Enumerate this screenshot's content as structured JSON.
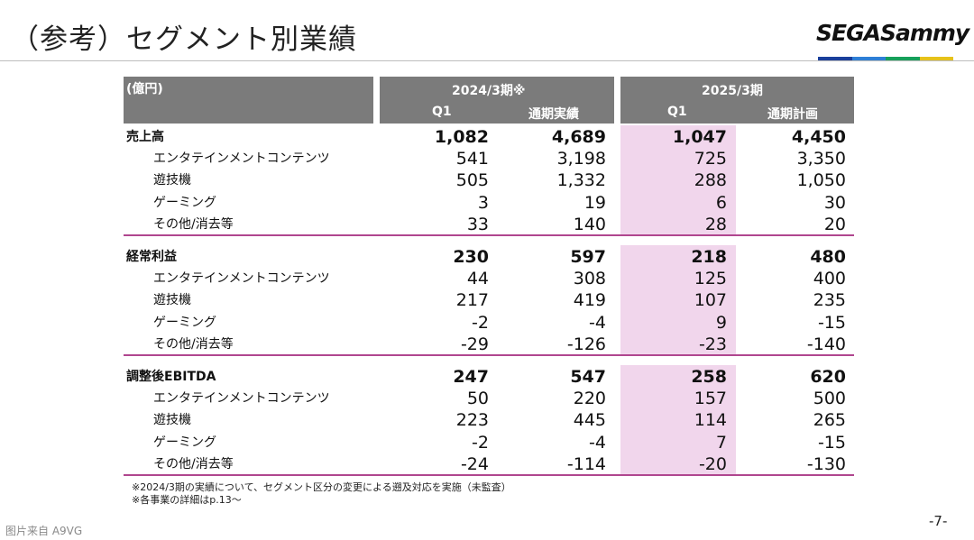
{
  "title": "（参考）セグメント別業績",
  "logo": {
    "text": "SEGASammy",
    "bar_colors": [
      "#1a3f9b",
      "#2e7fd6",
      "#16a05a",
      "#e6c21a"
    ]
  },
  "header": {
    "unit": "(億円)",
    "period1": "2024/3期※",
    "period2": "2025/3期",
    "cols": [
      "Q1",
      "通期実績",
      "Q1",
      "通期計画"
    ]
  },
  "sections": [
    {
      "rows": [
        {
          "label": "売上高",
          "main": true,
          "values": [
            "1,082",
            "4,689",
            "1,047",
            "4,450"
          ]
        },
        {
          "label": "エンタテインメントコンテンツ",
          "values": [
            "541",
            "3,198",
            "725",
            "3,350"
          ]
        },
        {
          "label": "遊技機",
          "values": [
            "505",
            "1,332",
            "288",
            "1,050"
          ]
        },
        {
          "label": "ゲーミング",
          "values": [
            "3",
            "19",
            "6",
            "30"
          ]
        },
        {
          "label": "その他/消去等",
          "values": [
            "33",
            "140",
            "28",
            "20"
          ]
        }
      ]
    },
    {
      "rows": [
        {
          "label": "経常利益",
          "main": true,
          "values": [
            "230",
            "597",
            "218",
            "480"
          ]
        },
        {
          "label": "エンタテインメントコンテンツ",
          "values": [
            "44",
            "308",
            "125",
            "400"
          ]
        },
        {
          "label": "遊技機",
          "values": [
            "217",
            "419",
            "107",
            "235"
          ]
        },
        {
          "label": "ゲーミング",
          "values": [
            "-2",
            "-4",
            "9",
            "-15"
          ]
        },
        {
          "label": "その他/消去等",
          "values": [
            "-29",
            "-126",
            "-23",
            "-140"
          ]
        }
      ]
    },
    {
      "rows": [
        {
          "label": "調整後EBITDA",
          "main": true,
          "values": [
            "247",
            "547",
            "258",
            "620"
          ]
        },
        {
          "label": "エンタテインメントコンテンツ",
          "values": [
            "50",
            "220",
            "157",
            "500"
          ]
        },
        {
          "label": "遊技機",
          "values": [
            "223",
            "445",
            "114",
            "265"
          ]
        },
        {
          "label": "ゲーミング",
          "values": [
            "-2",
            "-4",
            "7",
            "-15"
          ]
        },
        {
          "label": "その他/消去等",
          "values": [
            "-24",
            "-114",
            "-20",
            "-130"
          ]
        }
      ]
    }
  ],
  "notes": [
    "※2024/3期の実績について、セグメント区分の変更による遡及対応を実施（未監査）",
    "※各事業の詳細はp.13～"
  ],
  "page_number": "-7-",
  "watermark": "图片来自 A9VG",
  "colors": {
    "header_bg": "#7b7b7b",
    "highlight": "#f1d6ec",
    "separator": "#b0468f"
  }
}
